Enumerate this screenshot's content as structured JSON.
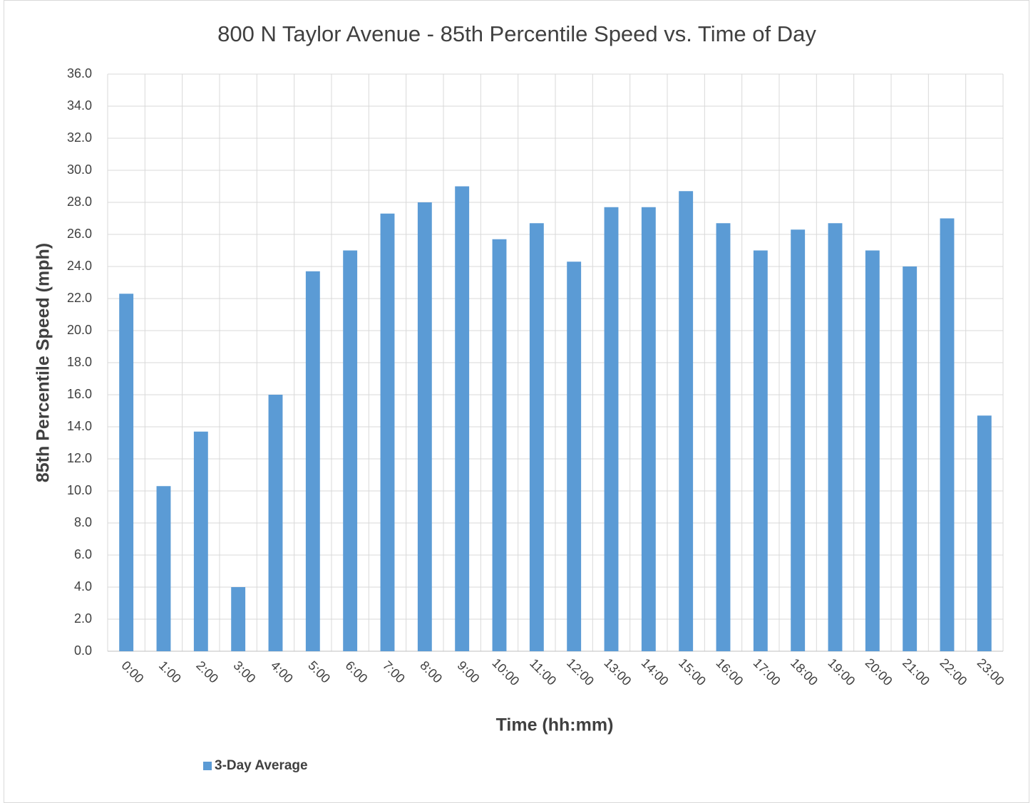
{
  "chart_data": {
    "type": "bar",
    "title": "800 N Taylor Avenue - 85th Percentile Speed vs. Time of Day",
    "x_label": "Time (hh:mm)",
    "y_label": "85th Percentile Speed (mph)",
    "categories": [
      "0:00",
      "1:00",
      "2:00",
      "3:00",
      "4:00",
      "5:00",
      "6:00",
      "7:00",
      "8:00",
      "9:00",
      "10:00",
      "11:00",
      "12:00",
      "13:00",
      "14:00",
      "15:00",
      "16:00",
      "17:00",
      "18:00",
      "19:00",
      "20:00",
      "21:00",
      "22:00",
      "23:00"
    ],
    "series": [
      {
        "name": "3-Day Average",
        "color": "#5b9bd5",
        "values": [
          22.3,
          10.3,
          13.7,
          4.0,
          16.0,
          23.7,
          25.0,
          27.3,
          28.0,
          29.0,
          25.7,
          26.7,
          24.3,
          27.7,
          27.7,
          28.7,
          26.7,
          25.0,
          26.3,
          26.7,
          25.0,
          24.0,
          27.0,
          14.7
        ]
      }
    ],
    "ylim": [
      0,
      36
    ],
    "yticks": [
      {
        "value": 0,
        "label": "0.0"
      },
      {
        "value": 2,
        "label": "2.0"
      },
      {
        "value": 4,
        "label": "4.0"
      },
      {
        "value": 6,
        "label": "6.0"
      },
      {
        "value": 8,
        "label": "8.0"
      },
      {
        "value": 10,
        "label": "10.0"
      },
      {
        "value": 12,
        "label": "12.0"
      },
      {
        "value": 14,
        "label": "14.0"
      },
      {
        "value": 16,
        "label": "16.0"
      },
      {
        "value": 18,
        "label": "18.0"
      },
      {
        "value": 20,
        "label": "20.0"
      },
      {
        "value": 22,
        "label": "22.0"
      },
      {
        "value": 24,
        "label": "24.0"
      },
      {
        "value": 26,
        "label": "26.0"
      },
      {
        "value": 28,
        "label": "28.0"
      },
      {
        "value": 30,
        "label": "30.0"
      },
      {
        "value": 32,
        "label": "32.0"
      },
      {
        "value": 34,
        "label": "34.0"
      },
      {
        "value": 36,
        "label": "36.0"
      }
    ],
    "grid": true,
    "legend": "bottom-left"
  }
}
